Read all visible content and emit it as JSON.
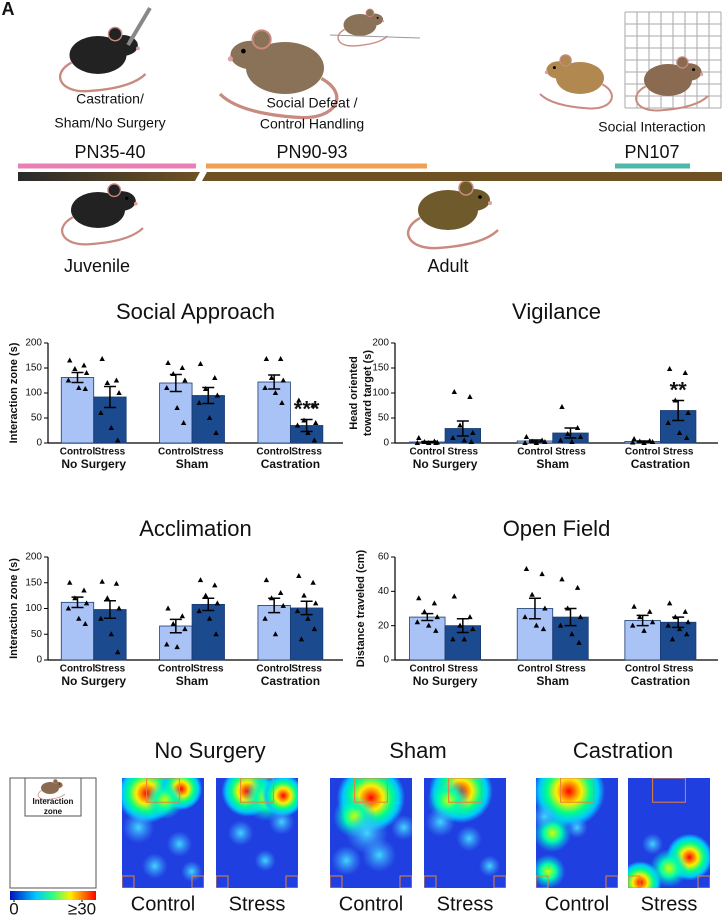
{
  "panel_letter": "A",
  "timeline": {
    "stages": [
      {
        "label": [
          "Castration/",
          "Sham/No Surgery"
        ],
        "period": "PN35-40"
      },
      {
        "label": [
          "Social Defeat /",
          "Control Handling"
        ],
        "period": "PN90-93"
      },
      {
        "label": [
          "Social Interaction"
        ],
        "period": "PN107"
      }
    ],
    "ages": [
      "Juvenile",
      "Adult"
    ]
  },
  "chart_data": [
    {
      "type": "bar",
      "title": "Social Approach",
      "y_label": "Interaction zone (s)",
      "categories": [
        "No Surgery",
        "Sham",
        "Castration"
      ],
      "ylim": [
        0,
        200
      ],
      "yticks": [
        0,
        50,
        100,
        150,
        200
      ],
      "series": [
        {
          "name": "Control",
          "color": "#a9c3f7",
          "values": [
            131,
            120,
            122
          ],
          "errors": [
            10,
            17,
            14
          ],
          "points": [
            [
              165,
              155,
              148,
              140,
              125,
              110,
              108
            ],
            [
              160,
              150,
              138,
              125,
              110,
              70,
              40
            ],
            [
              168,
              168,
              130,
              125,
              110,
              100,
              80
            ]
          ]
        },
        {
          "name": "Stress",
          "color": "#1b4a8e",
          "values": [
            92,
            95,
            35
          ],
          "errors": [
            21,
            16,
            12
          ],
          "points": [
            [
              168,
              125,
              120,
              100,
              60,
              30,
              5
            ],
            [
              158,
              130,
              108,
              95,
              80,
              50,
              20
            ],
            [
              85,
              75,
              45,
              40,
              35,
              20,
              5
            ]
          ],
          "significance": [
            null,
            null,
            "***"
          ]
        }
      ]
    },
    {
      "type": "bar",
      "title": "Vigilance",
      "y_label": [
        "Head oriented",
        "toward target (s)"
      ],
      "categories": [
        "No Surgery",
        "Sham",
        "Castration"
      ],
      "ylim": [
        0,
        200
      ],
      "yticks": [
        0,
        50,
        100,
        150,
        200
      ],
      "series": [
        {
          "name": "Control",
          "color": "#a9c3f7",
          "values": [
            2,
            4,
            3
          ],
          "errors": [
            1,
            2,
            1
          ],
          "points": [
            [
              10,
              3,
              2,
              1,
              0,
              0,
              0
            ],
            [
              12,
              5,
              3,
              2,
              0,
              0
            ],
            [
              8,
              4,
              3,
              2,
              1,
              0
            ]
          ]
        },
        {
          "name": "Stress",
          "color": "#1b4a8e",
          "values": [
            29,
            20,
            65
          ],
          "errors": [
            15,
            10,
            20
          ],
          "points": [
            [
              102,
              92,
              35,
              20,
              10,
              5,
              2
            ],
            [
              72,
              30,
              18,
              12,
              5,
              2
            ],
            [
              148,
              140,
              85,
              60,
              40,
              20,
              10
            ]
          ],
          "significance": [
            null,
            null,
            "**"
          ]
        }
      ]
    },
    {
      "type": "bar",
      "title": "Acclimation",
      "y_label": "Interaction zone (s)",
      "categories": [
        "No Surgery",
        "Sham",
        "Castration"
      ],
      "ylim": [
        0,
        200
      ],
      "yticks": [
        0,
        50,
        100,
        150,
        200
      ],
      "series": [
        {
          "name": "Control",
          "color": "#a9c3f7",
          "values": [
            112,
            66,
            106
          ],
          "errors": [
            10,
            13,
            14
          ],
          "points": [
            [
              150,
              135,
              120,
              110,
              100,
              80,
              70
            ],
            [
              100,
              85,
              70,
              60,
              30,
              25
            ],
            [
              155,
              130,
              120,
              105,
              80,
              50
            ]
          ]
        },
        {
          "name": "Stress",
          "color": "#1b4a8e",
          "values": [
            98,
            108,
            101
          ],
          "errors": [
            17,
            12,
            13
          ],
          "points": [
            [
              152,
              148,
              120,
              100,
              80,
              50,
              15
            ],
            [
              155,
              145,
              125,
              110,
              95,
              80,
              50
            ],
            [
              163,
              150,
              125,
              110,
              95,
              80,
              60,
              40
            ]
          ]
        }
      ]
    },
    {
      "type": "bar",
      "title": "Open Field",
      "y_label": "Distance traveled (cm)",
      "categories": [
        "No Surgery",
        "Sham",
        "Castration"
      ],
      "ylim": [
        0,
        60
      ],
      "yticks": [
        0,
        20,
        40,
        60
      ],
      "series": [
        {
          "name": "Control",
          "color": "#a9c3f7",
          "values": [
            25,
            30,
            23
          ],
          "errors": [
            2,
            6,
            3
          ],
          "points": [
            [
              36,
              33,
              28,
              25,
              22,
              20,
              17
            ],
            [
              53,
              50,
              38,
              30,
              25,
              20,
              18
            ],
            [
              31,
              28,
              25,
              22,
              20,
              17
            ]
          ]
        },
        {
          "name": "Stress",
          "color": "#1b4a8e",
          "values": [
            20,
            25,
            22
          ],
          "errors": [
            4,
            5,
            3
          ],
          "points": [
            [
              37,
              25,
              20,
              18,
              12,
              12
            ],
            [
              47,
              42,
              30,
              25,
              20,
              15,
              10
            ],
            [
              33,
              28,
              25,
              22,
              20,
              18,
              15,
              12
            ]
          ]
        }
      ]
    }
  ],
  "heatmaps": {
    "titles": [
      "No Surgery",
      "Sham",
      "Castration"
    ],
    "panel_labels": [
      "Control",
      "Stress"
    ],
    "zone_label": "Interaction zone",
    "colorbar_ticks": [
      0,
      {
        "value": 30,
        "label": "≥30"
      }
    ]
  }
}
